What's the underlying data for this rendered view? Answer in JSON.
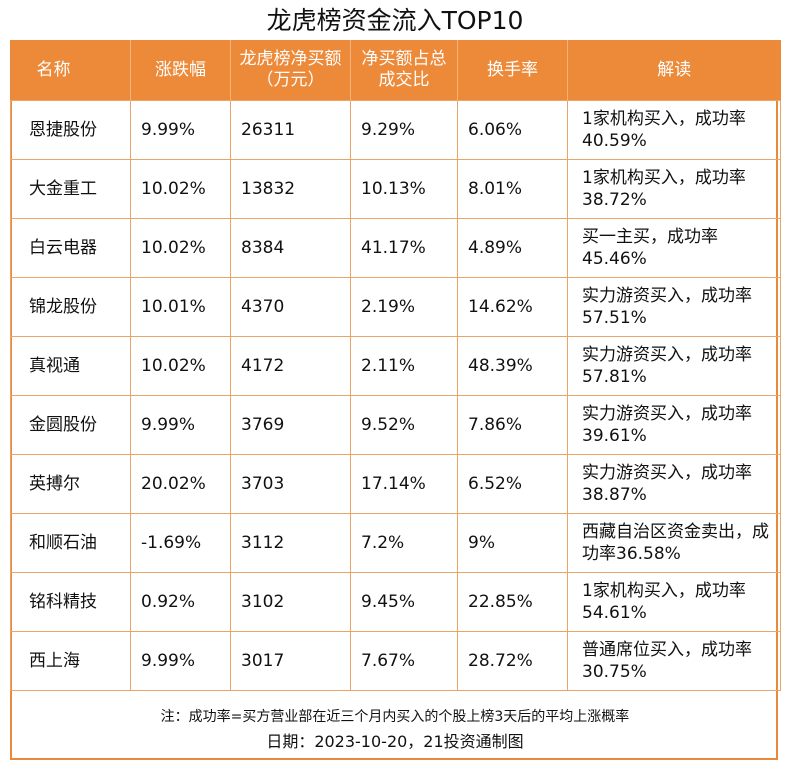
{
  "title": "龙虎榜资金流入TOP10",
  "headers": [
    "名称",
    "涨跌幅",
    "龙虎榜净买额（万元）",
    "净买额占总成交比",
    "换手率",
    "解读"
  ],
  "rows": [
    {
      "name": "恩捷股份",
      "change": "9.99%",
      "net_buy": "26311",
      "ratio": "9.29%",
      "turnover": "6.06%",
      "note": "1家机构买入，成功率40.59%"
    },
    {
      "name": "大金重工",
      "change": "10.02%",
      "net_buy": "13832",
      "ratio": "10.13%",
      "turnover": "8.01%",
      "note": "1家机构买入，成功率38.72%"
    },
    {
      "name": "白云电器",
      "change": "10.02%",
      "net_buy": "8384",
      "ratio": "41.17%",
      "turnover": "4.89%",
      "note": "买一主买，成功率45.46%"
    },
    {
      "name": "锦龙股份",
      "change": "10.01%",
      "net_buy": "4370",
      "ratio": "2.19%",
      "turnover": "14.62%",
      "note": "实力游资买入，成功率57.51%"
    },
    {
      "name": "真视通",
      "change": "10.02%",
      "net_buy": "4172",
      "ratio": "2.11%",
      "turnover": "48.39%",
      "note": "实力游资买入，成功率57.81%"
    },
    {
      "name": "金圆股份",
      "change": "9.99%",
      "net_buy": "3769",
      "ratio": "9.52%",
      "turnover": "7.86%",
      "note": "实力游资买入，成功率39.61%"
    },
    {
      "name": "英搏尔",
      "change": "20.02%",
      "net_buy": "3703",
      "ratio": "17.14%",
      "turnover": "6.52%",
      "note": "实力游资买入，成功率38.87%"
    },
    {
      "name": "和顺石油",
      "change": "-1.69%",
      "net_buy": "3112",
      "ratio": "7.2%",
      "turnover": "9%",
      "note": "西藏自治区资金卖出，成功率36.58%"
    },
    {
      "name": "铭科精技",
      "change": "0.92%",
      "net_buy": "3102",
      "ratio": "9.45%",
      "turnover": "22.85%",
      "note": "1家机构买入，成功率54.61%"
    },
    {
      "name": "西上海",
      "change": "9.99%",
      "net_buy": "3017",
      "ratio": "7.67%",
      "turnover": "28.72%",
      "note": "普通席位买入，成功率30.75%"
    }
  ],
  "footnote": "注：成功率=买方营业部在近三个月内买入的个股上榜3天后的平均上涨概率",
  "date_line": "日期：2023-10-20，21投资通制图",
  "colors": {
    "header_bg": "#EC8A3A",
    "border": "#E9A46A"
  }
}
